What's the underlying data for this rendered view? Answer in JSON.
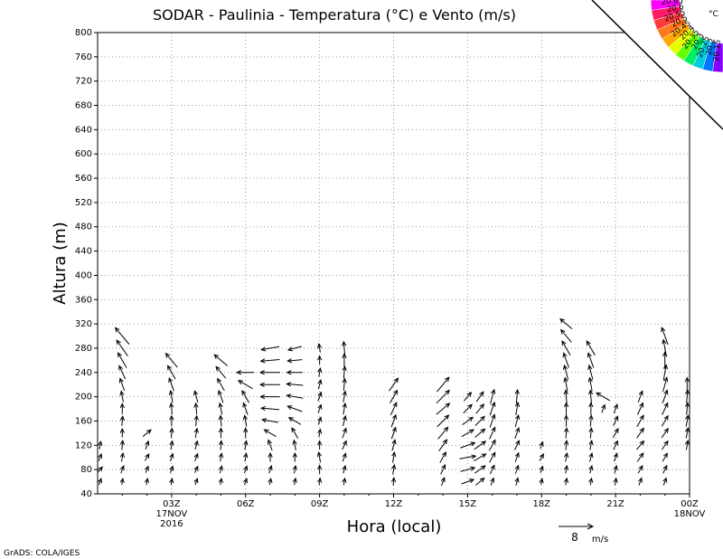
{
  "chart_data": {
    "type": "vector-profile",
    "title": "SODAR - Paulinia - Temperatura (°C) e Vento (m/s)",
    "xlabel": "Hora (local)",
    "ylabel": "Altura (m)",
    "x_ticks": [
      "03Z",
      "06Z",
      "09Z",
      "12Z",
      "15Z",
      "18Z",
      "21Z",
      "00Z"
    ],
    "x_date_labels": [
      {
        "tick": "03Z",
        "text": [
          "17NOV",
          "2016"
        ]
      },
      {
        "tick": "00Z",
        "text": [
          "18NOV"
        ]
      }
    ],
    "xlim_hours": [
      0,
      24
    ],
    "ylim": [
      40,
      800
    ],
    "y_ticks": [
      40,
      80,
      120,
      160,
      200,
      240,
      280,
      320,
      360,
      400,
      440,
      480,
      520,
      560,
      600,
      640,
      680,
      720,
      760,
      800
    ],
    "grid": true,
    "legend": {
      "unit": "°C",
      "levels": [
        "20.65",
        "20.6",
        "20.55",
        "20.5",
        "20.45",
        "20.4",
        "20.35",
        "20.3",
        "20.25",
        "20.2",
        "20.15"
      ],
      "colors": [
        "#ff00ff",
        "#ff1a66",
        "#ff3a3a",
        "#ff7a1a",
        "#ffaa00",
        "#e6ff00",
        "#66ff00",
        "#00ee66",
        "#00ccdd",
        "#0077ff",
        "#8800ff"
      ]
    },
    "wind_reference": {
      "label": "8",
      "unit": "m/s",
      "speed": 8
    },
    "wind_profiles": [
      {
        "hour": 0.1,
        "heights": [
          60,
          80,
          100,
          120
        ],
        "dir": [
          200,
          220,
          200,
          190
        ],
        "speed": [
          1.5,
          1.6,
          1.7,
          1.8
        ]
      },
      {
        "hour": 1.0,
        "heights": [
          60,
          80,
          100,
          120,
          140,
          160,
          180,
          200,
          220,
          240,
          260,
          280,
          300
        ],
        "dir": [
          190,
          200,
          190,
          185,
          180,
          185,
          180,
          170,
          160,
          155,
          150,
          145,
          140
        ],
        "speed": [
          1.5,
          1.8,
          2.0,
          2.2,
          2.0,
          2.2,
          2.4,
          2.6,
          3.0,
          3.4,
          4.0,
          4.5,
          5.0
        ]
      },
      {
        "hour": 2.0,
        "heights": [
          60,
          80,
          100,
          120,
          140
        ],
        "dir": [
          190,
          200,
          210,
          200,
          230
        ],
        "speed": [
          1.5,
          1.6,
          1.8,
          2.0,
          2.4
        ]
      },
      {
        "hour": 3.0,
        "heights": [
          60,
          80,
          100,
          120,
          140,
          160,
          180,
          200,
          220,
          240,
          260
        ],
        "dir": [
          190,
          200,
          200,
          190,
          185,
          180,
          175,
          170,
          160,
          150,
          140
        ],
        "speed": [
          1.4,
          1.6,
          1.8,
          2.0,
          2.2,
          2.4,
          2.6,
          2.8,
          3.2,
          3.6,
          4.2
        ]
      },
      {
        "hour": 4.0,
        "heights": [
          60,
          80,
          100,
          120,
          140,
          160,
          180,
          200
        ],
        "dir": [
          200,
          205,
          200,
          195,
          190,
          185,
          175,
          165
        ],
        "speed": [
          1.5,
          1.6,
          1.8,
          2.0,
          2.2,
          2.4,
          2.6,
          2.8
        ]
      },
      {
        "hour": 5.0,
        "heights": [
          60,
          80,
          100,
          120,
          140,
          160,
          180,
          200,
          220,
          240,
          260
        ],
        "dir": [
          190,
          195,
          190,
          185,
          180,
          175,
          170,
          160,
          150,
          140,
          130
        ],
        "speed": [
          1.5,
          1.7,
          1.9,
          2.1,
          2.3,
          2.5,
          2.7,
          3.0,
          3.2,
          3.5,
          4.0
        ]
      },
      {
        "hour": 6.0,
        "heights": [
          60,
          80,
          100,
          120,
          140,
          160,
          180,
          200,
          220,
          240
        ],
        "dir": [
          200,
          200,
          190,
          190,
          180,
          170,
          160,
          150,
          120,
          90
        ],
        "speed": [
          1.5,
          1.7,
          1.9,
          2.1,
          2.3,
          2.6,
          2.9,
          3.2,
          3.8,
          4.0
        ]
      },
      {
        "hour": 7.0,
        "heights": [
          60,
          80,
          100,
          120,
          140,
          160,
          180,
          200,
          220,
          240,
          260,
          280
        ],
        "dir": [
          190,
          200,
          180,
          160,
          120,
          100,
          95,
          90,
          90,
          90,
          85,
          80
        ],
        "speed": [
          1.5,
          1.8,
          2.0,
          2.6,
          3.2,
          3.8,
          4.2,
          4.5,
          4.6,
          4.6,
          4.4,
          4.2
        ]
      },
      {
        "hour": 8.0,
        "heights": [
          60,
          80,
          100,
          120,
          140,
          160,
          180,
          200,
          220,
          240,
          260,
          280
        ],
        "dir": [
          190,
          190,
          180,
          170,
          150,
          120,
          110,
          100,
          95,
          90,
          85,
          75
        ],
        "speed": [
          1.6,
          1.8,
          2.0,
          2.4,
          2.8,
          3.2,
          3.6,
          3.8,
          3.8,
          3.6,
          3.4,
          3.2
        ]
      },
      {
        "hour": 9.0,
        "heights": [
          60,
          80,
          100,
          120,
          140,
          160,
          180,
          200,
          220,
          240,
          260,
          280
        ],
        "dir": [
          190,
          180,
          170,
          180,
          190,
          200,
          200,
          200,
          195,
          190,
          180,
          170
        ],
        "speed": [
          1.6,
          2.0,
          2.4,
          2.0,
          1.8,
          1.8,
          2.0,
          2.2,
          2.2,
          2.0,
          2.0,
          2.0
        ]
      },
      {
        "hour": 10.0,
        "heights": [
          60,
          80,
          100,
          120,
          140,
          160,
          180,
          200,
          220,
          240,
          260,
          280
        ],
        "dir": [
          190,
          195,
          200,
          205,
          200,
          195,
          190,
          190,
          185,
          185,
          180,
          175
        ],
        "speed": [
          1.6,
          1.8,
          2.0,
          2.2,
          2.4,
          2.4,
          2.6,
          2.6,
          2.8,
          2.8,
          3.0,
          3.0
        ]
      },
      {
        "hour": 12.0,
        "heights": [
          60,
          80,
          100,
          120,
          140,
          160,
          180,
          200,
          220
        ],
        "dir": [
          185,
          190,
          190,
          195,
          200,
          200,
          205,
          210,
          215
        ],
        "speed": [
          1.8,
          2.2,
          2.4,
          2.6,
          2.8,
          3.0,
          3.2,
          3.4,
          3.6
        ]
      },
      {
        "hour": 14.0,
        "heights": [
          60,
          80,
          100,
          120,
          140,
          160,
          180,
          200,
          220
        ],
        "dir": [
          200,
          205,
          210,
          215,
          220,
          225,
          230,
          225,
          220
        ],
        "speed": [
          2.0,
          2.4,
          2.8,
          3.2,
          3.6,
          3.8,
          4.0,
          4.2,
          4.4
        ]
      },
      {
        "hour": 15.0,
        "heights": [
          60,
          80,
          100,
          120,
          140,
          160,
          180,
          200
        ],
        "dir": [
          250,
          255,
          260,
          250,
          240,
          235,
          225,
          220
        ],
        "speed": [
          3.0,
          3.4,
          3.8,
          3.6,
          3.2,
          3.0,
          2.8,
          2.6
        ]
      },
      {
        "hour": 15.5,
        "heights": [
          60,
          80,
          100,
          120,
          140,
          160,
          180,
          200
        ],
        "dir": [
          230,
          235,
          240,
          235,
          230,
          225,
          220,
          215
        ],
        "speed": [
          2.6,
          3.0,
          3.2,
          3.2,
          3.0,
          3.0,
          2.8,
          2.8
        ]
      },
      {
        "hour": 16.0,
        "heights": [
          60,
          80,
          100,
          120,
          140,
          160,
          180,
          200
        ],
        "dir": [
          200,
          205,
          210,
          210,
          205,
          200,
          200,
          195
        ],
        "speed": [
          1.8,
          2.2,
          2.6,
          2.8,
          3.0,
          3.2,
          3.2,
          3.4
        ]
      },
      {
        "hour": 17.0,
        "heights": [
          60,
          80,
          100,
          120,
          140,
          160,
          180,
          200
        ],
        "dir": [
          195,
          200,
          200,
          205,
          200,
          195,
          190,
          185
        ],
        "speed": [
          1.8,
          2.0,
          2.2,
          2.4,
          2.6,
          2.8,
          3.0,
          3.2
        ]
      },
      {
        "hour": 18.0,
        "heights": [
          60,
          80,
          100,
          120
        ],
        "dir": [
          190,
          200,
          210,
          200
        ],
        "speed": [
          1.4,
          1.6,
          1.8,
          1.6
        ]
      },
      {
        "hour": 19.0,
        "heights": [
          60,
          80,
          100,
          120,
          140,
          160,
          180,
          200,
          220,
          240,
          260,
          280,
          300,
          320
        ],
        "dir": [
          190,
          190,
          190,
          185,
          185,
          180,
          180,
          175,
          170,
          165,
          160,
          150,
          140,
          130
        ],
        "speed": [
          1.6,
          1.8,
          2.0,
          2.2,
          2.4,
          2.6,
          2.8,
          3.0,
          3.2,
          3.4,
          3.6,
          3.8,
          3.8,
          3.6
        ]
      },
      {
        "hour": 20.0,
        "heights": [
          60,
          80,
          100,
          120,
          140,
          160,
          180,
          200,
          220,
          240,
          260,
          280
        ],
        "dir": [
          190,
          195,
          195,
          190,
          185,
          185,
          180,
          175,
          170,
          165,
          160,
          150
        ],
        "speed": [
          1.6,
          1.8,
          2.0,
          2.2,
          2.4,
          2.6,
          2.8,
          3.0,
          3.2,
          3.4,
          3.6,
          3.8
        ]
      },
      {
        "hour": 20.5,
        "heights": [
          180,
          200
        ],
        "dir": [
          200,
          120
        ],
        "speed": [
          2.0,
          3.6
        ]
      },
      {
        "hour": 21.0,
        "heights": [
          60,
          80,
          100,
          120,
          140,
          160,
          180
        ],
        "dir": [
          190,
          195,
          200,
          205,
          210,
          205,
          200
        ],
        "speed": [
          1.6,
          1.8,
          2.0,
          2.2,
          2.4,
          2.4,
          2.2
        ]
      },
      {
        "hour": 22.0,
        "heights": [
          60,
          80,
          100,
          120,
          140,
          160,
          180,
          200
        ],
        "dir": [
          200,
          210,
          215,
          220,
          215,
          210,
          205,
          200
        ],
        "speed": [
          1.8,
          2.0,
          2.4,
          2.6,
          2.8,
          3.0,
          3.0,
          2.8
        ]
      },
      {
        "hour": 23.0,
        "heights": [
          60,
          80,
          100,
          120,
          140,
          160,
          180,
          200,
          220,
          240,
          260,
          280,
          300
        ],
        "dir": [
          200,
          205,
          210,
          215,
          215,
          210,
          205,
          200,
          195,
          190,
          180,
          170,
          160
        ],
        "speed": [
          1.8,
          2.0,
          2.2,
          2.4,
          2.6,
          2.8,
          3.0,
          3.2,
          3.4,
          3.6,
          3.8,
          4.0,
          4.2
        ]
      },
      {
        "hour": 23.9,
        "heights": [
          120,
          140,
          160,
          180,
          200,
          220
        ],
        "dir": [
          190,
          190,
          190,
          185,
          185,
          180
        ],
        "speed": [
          2.2,
          2.4,
          2.6,
          2.8,
          3.0,
          3.2
        ]
      }
    ]
  },
  "footer": {
    "credit": "GrADS: COLA/IGES"
  }
}
